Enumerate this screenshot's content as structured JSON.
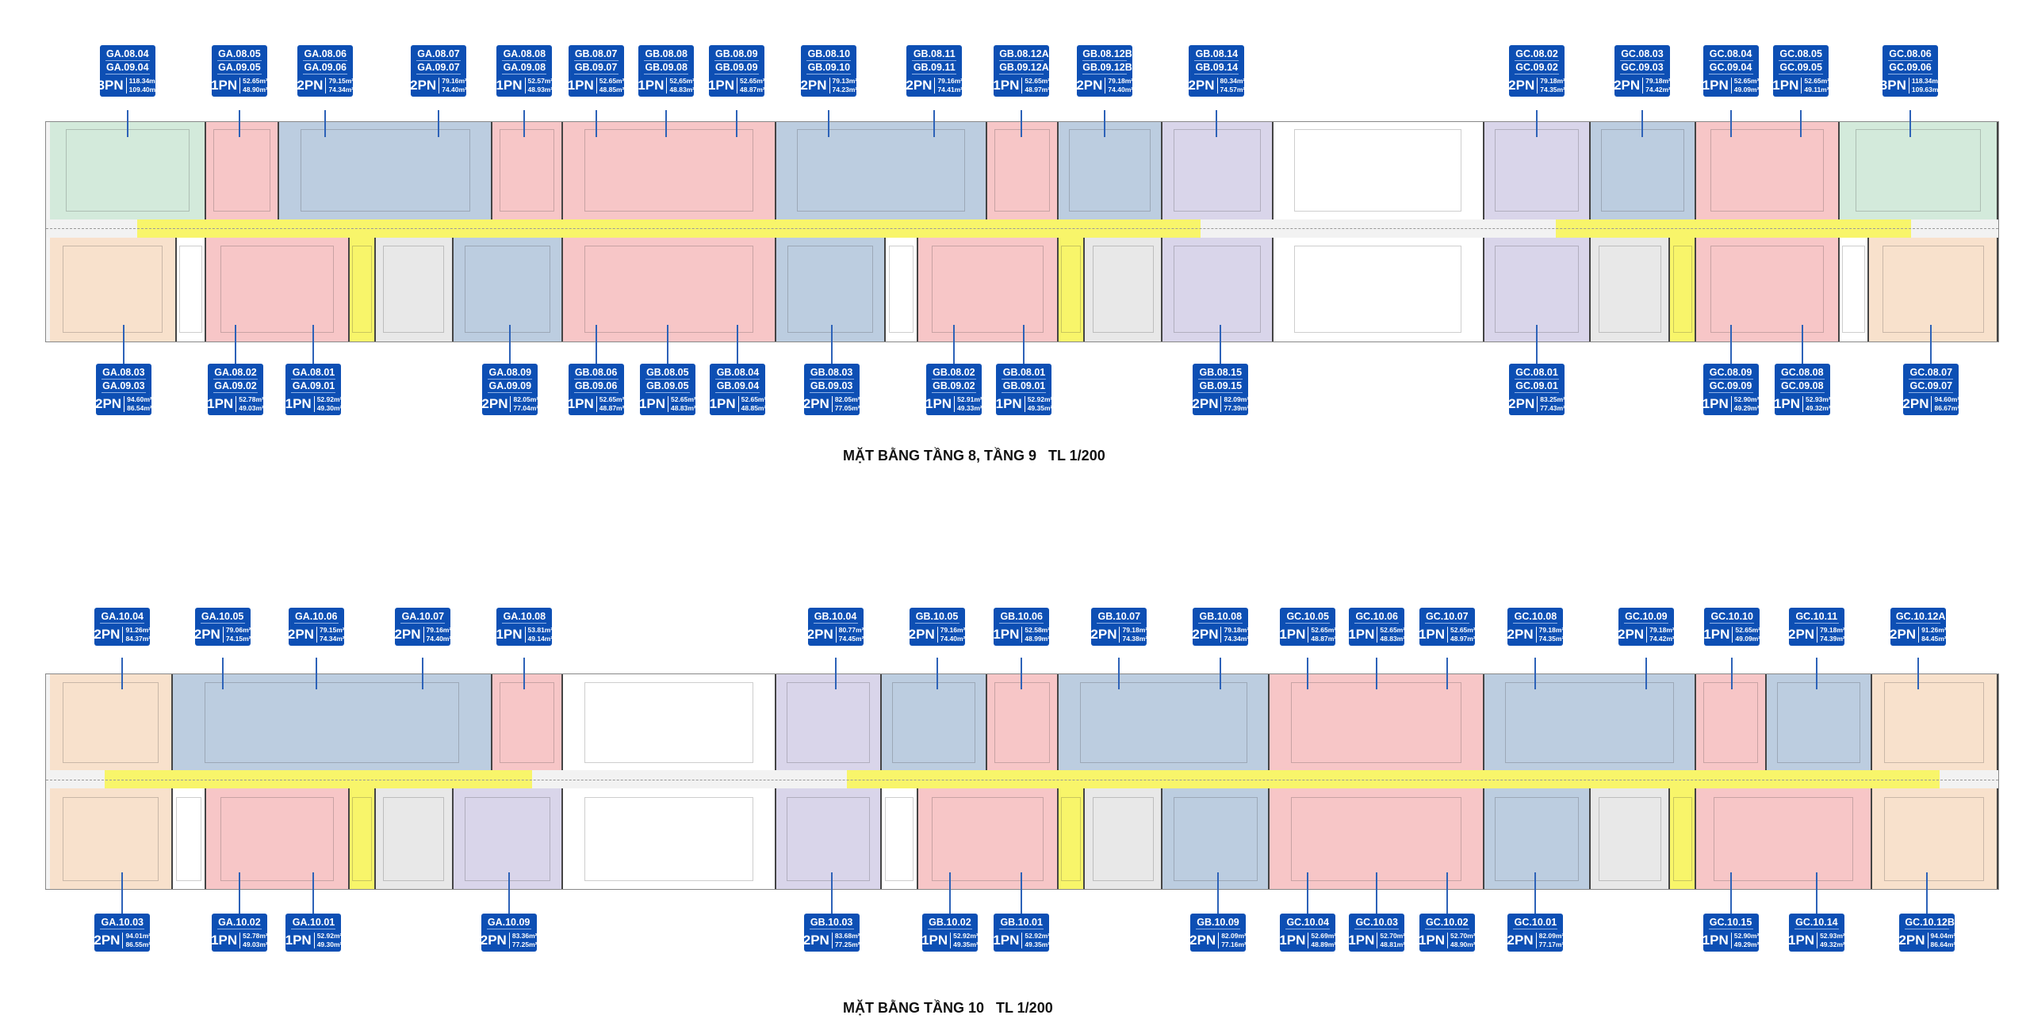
{
  "colors": {
    "label_bg": "#0d4fb4",
    "unit_1pn": "#f7c6c7",
    "unit_2pn": "#bccde0",
    "unit_3pn": "#d3eadb",
    "unit_corner": "#f8e1cc",
    "unit_alt": "#d9d5ea",
    "corridor": "#f8f56a"
  },
  "floors": [
    {
      "title": "MẶT BẰNG TẦNG 8, TẦNG 9   TL 1/200",
      "top_labels": [
        {
          "codes": [
            "GA.08.04",
            "GA.09.04"
          ],
          "type": "3PN",
          "area1": "118.34m²",
          "area2": "109.40m²"
        },
        {
          "codes": [
            "GA.08.05",
            "GA.09.05"
          ],
          "type": "1PN",
          "area1": "52.65m²",
          "area2": "48.90m²"
        },
        {
          "codes": [
            "GA.08.06",
            "GA.09.06"
          ],
          "type": "2PN",
          "area1": "79.15m²",
          "area2": "74.34m²"
        },
        {
          "codes": [
            "GA.08.07",
            "GA.09.07"
          ],
          "type": "2PN",
          "area1": "79.16m²",
          "area2": "74.40m²"
        },
        {
          "codes": [
            "GA.08.08",
            "GA.09.08"
          ],
          "type": "1PN",
          "area1": "52.57m²",
          "area2": "48.93m²"
        },
        {
          "codes": [
            "GB.08.07",
            "GB.09.07"
          ],
          "type": "1PN",
          "area1": "52.65m²",
          "area2": "48.85m²"
        },
        {
          "codes": [
            "GB.08.08",
            "GB.09.08"
          ],
          "type": "1PN",
          "area1": "52,65m²",
          "area2": "48.83m²"
        },
        {
          "codes": [
            "GB.08.09",
            "GB.09.09"
          ],
          "type": "1PN",
          "area1": "52.65m²",
          "area2": "48.87m²"
        },
        {
          "codes": [
            "GB.08.10",
            "GB.09.10"
          ],
          "type": "2PN",
          "area1": "79.13m²",
          "area2": "74.23m²"
        },
        {
          "codes": [
            "GB.08.11",
            "GB.09.11"
          ],
          "type": "2PN",
          "area1": "79.16m²",
          "area2": "74.41m²"
        },
        {
          "codes": [
            "GB.08.12A",
            "GB.09.12A"
          ],
          "type": "1PN",
          "area1": "52.65m²",
          "area2": "48.97m²"
        },
        {
          "codes": [
            "GB.08.12B",
            "GB.09.12B"
          ],
          "type": "2PN",
          "area1": "79.18m²",
          "area2": "74.40m²"
        },
        {
          "codes": [
            "GB.08.14",
            "GB.09.14"
          ],
          "type": "2PN",
          "area1": "80.34m²",
          "area2": "74.57m²"
        },
        {
          "codes": [
            "GC.08.02",
            "GC.09.02"
          ],
          "type": "2PN",
          "area1": "79.18m²",
          "area2": "74.35m²"
        },
        {
          "codes": [
            "GC.08.03",
            "GC.09.03"
          ],
          "type": "2PN",
          "area1": "79.18m²",
          "area2": "74.42m²"
        },
        {
          "codes": [
            "GC.08.04",
            "GC.09.04"
          ],
          "type": "1PN",
          "area1": "52.65m²",
          "area2": "49.09m²"
        },
        {
          "codes": [
            "GC.08.05",
            "GC.09.05"
          ],
          "type": "1PN",
          "area1": "52.65m²",
          "area2": "49.11m²"
        },
        {
          "codes": [
            "GC.08.06",
            "GC.09.06"
          ],
          "type": "3PN",
          "area1": "118.34m²",
          "area2": "109.63m²"
        }
      ],
      "bottom_labels": [
        {
          "codes": [
            "GA.08.03",
            "GA.09.03"
          ],
          "type": "2PN",
          "area1": "94.60m²",
          "area2": "86.54m²"
        },
        {
          "codes": [
            "GA.08.02",
            "GA.09.02"
          ],
          "type": "1PN",
          "area1": "52.78m²",
          "area2": "49.03m²"
        },
        {
          "codes": [
            "GA.08.01",
            "GA.09.01"
          ],
          "type": "1PN",
          "area1": "52.92m²",
          "area2": "49.30m²"
        },
        {
          "codes": [
            "GA.08.09",
            "GA.09.09"
          ],
          "type": "2PN",
          "area1": "82.05m²",
          "area2": "77.04m²"
        },
        {
          "codes": [
            "GB.08.06",
            "GB.09.06"
          ],
          "type": "1PN",
          "area1": "52.65m²",
          "area2": "48.87m²"
        },
        {
          "codes": [
            "GB.08.05",
            "GB.09.05"
          ],
          "type": "1PN",
          "area1": "52.65m²",
          "area2": "48.83m²"
        },
        {
          "codes": [
            "GB.08.04",
            "GB.09.04"
          ],
          "type": "1PN",
          "area1": "52.65m²",
          "area2": "48.85m²"
        },
        {
          "codes": [
            "GB.08.03",
            "GB.09.03"
          ],
          "type": "2PN",
          "area1": "82.05m²",
          "area2": "77.05m²"
        },
        {
          "codes": [
            "GB.08.02",
            "GB.09.02"
          ],
          "type": "1PN",
          "area1": "52.91m²",
          "area2": "49.33m²"
        },
        {
          "codes": [
            "GB.08.01",
            "GB.09.01"
          ],
          "type": "1PN",
          "area1": "52.92m²",
          "area2": "49.35m²"
        },
        {
          "codes": [
            "GB.08.15",
            "GB.09.15"
          ],
          "type": "2PN",
          "area1": "82.09m²",
          "area2": "77.39m²"
        },
        {
          "codes": [
            "GC.08.01",
            "GC.09.01"
          ],
          "type": "2PN",
          "area1": "83.25m²",
          "area2": "77.43m²"
        },
        {
          "codes": [
            "GC.08.09",
            "GC.09.09"
          ],
          "type": "1PN",
          "area1": "52.90m²",
          "area2": "49.29m²"
        },
        {
          "codes": [
            "GC.08.08",
            "GC.09.08"
          ],
          "type": "1PN",
          "area1": "52.93m²",
          "area2": "49.32m²"
        },
        {
          "codes": [
            "GC.08.07",
            "GC.09.07"
          ],
          "type": "2PN",
          "area1": "94.60m²",
          "area2": "86.67m²"
        }
      ]
    },
    {
      "title": "MẶT BẰNG TẦNG 10   TL 1/200",
      "top_labels": [
        {
          "codes": [
            "GA.10.04"
          ],
          "type": "2PN",
          "area1": "91.26m²",
          "area2": "84.37m²"
        },
        {
          "codes": [
            "GA.10.05"
          ],
          "type": "2PN",
          "area1": "79.06m²",
          "area2": "74.15m²"
        },
        {
          "codes": [
            "GA.10.06"
          ],
          "type": "2PN",
          "area1": "79.15m²",
          "area2": "74.34m²"
        },
        {
          "codes": [
            "GA.10.07"
          ],
          "type": "2PN",
          "area1": "79.16m²",
          "area2": "74.40m²"
        },
        {
          "codes": [
            "GA.10.08"
          ],
          "type": "1PN",
          "area1": "53.81m²",
          "area2": "49.14m²"
        },
        {
          "codes": [
            "GB.10.04"
          ],
          "type": "2PN",
          "area1": "80.77m²",
          "area2": "74.45m²"
        },
        {
          "codes": [
            "GB.10.05"
          ],
          "type": "2PN",
          "area1": "79.16m²",
          "area2": "74.40m²"
        },
        {
          "codes": [
            "GB.10.06"
          ],
          "type": "1PN",
          "area1": "52.58m²",
          "area2": "48.99m²"
        },
        {
          "codes": [
            "GB.10.07"
          ],
          "type": "2PN",
          "area1": "79.18m²",
          "area2": "74.38m²"
        },
        {
          "codes": [
            "GB.10.08"
          ],
          "type": "2PN",
          "area1": "79.18m²",
          "area2": "74.34m²"
        },
        {
          "codes": [
            "GC.10.05"
          ],
          "type": "1PN",
          "area1": "52.65m²",
          "area2": "48.87m²"
        },
        {
          "codes": [
            "GC.10.06"
          ],
          "type": "1PN",
          "area1": "52.65m²",
          "area2": "48.83m²"
        },
        {
          "codes": [
            "GC.10.07"
          ],
          "type": "1PN",
          "area1": "52.65m²",
          "area2": "48.97m²"
        },
        {
          "codes": [
            "GC.10.08"
          ],
          "type": "2PN",
          "area1": "79.18m²",
          "area2": "74.35m²"
        },
        {
          "codes": [
            "GC.10.09"
          ],
          "type": "2PN",
          "area1": "79.18m²",
          "area2": "74.42m²"
        },
        {
          "codes": [
            "GC.10.10"
          ],
          "type": "1PN",
          "area1": "52.65m²",
          "area2": "49.09m²"
        },
        {
          "codes": [
            "GC.10.11"
          ],
          "type": "2PN",
          "area1": "79.18m²",
          "area2": "74.39m²"
        },
        {
          "codes": [
            "GC.10.12A"
          ],
          "type": "2PN",
          "area1": "91.26m²",
          "area2": "84.45m²"
        }
      ],
      "bottom_labels": [
        {
          "codes": [
            "GA.10.03"
          ],
          "type": "2PN",
          "area1": "94.01m²",
          "area2": "86.55m²"
        },
        {
          "codes": [
            "GA.10.02"
          ],
          "type": "1PN",
          "area1": "52.78m²",
          "area2": "49.03m²"
        },
        {
          "codes": [
            "GA.10.01"
          ],
          "type": "1PN",
          "area1": "52.92m²",
          "area2": "49.30m²"
        },
        {
          "codes": [
            "GA.10.09"
          ],
          "type": "2PN",
          "area1": "83.36m²",
          "area2": "77.25m²"
        },
        {
          "codes": [
            "GB.10.03"
          ],
          "type": "2PN",
          "area1": "83.68m²",
          "area2": "77.25m²"
        },
        {
          "codes": [
            "GB.10.02"
          ],
          "type": "1PN",
          "area1": "52.92m²",
          "area2": "49.35m²"
        },
        {
          "codes": [
            "GB.10.01"
          ],
          "type": "1PN",
          "area1": "52.92m²",
          "area2": "49.35m²"
        },
        {
          "codes": [
            "GB.10.09"
          ],
          "type": "2PN",
          "area1": "82.09m²",
          "area2": "77.16m²"
        },
        {
          "codes": [
            "GC.10.04"
          ],
          "type": "1PN",
          "area1": "52.69m²",
          "area2": "48.89m²"
        },
        {
          "codes": [
            "GC.10.03"
          ],
          "type": "1PN",
          "area1": "52.70m²",
          "area2": "48.81m²"
        },
        {
          "codes": [
            "GC.10.02"
          ],
          "type": "1PN",
          "area1": "52.70m²",
          "area2": "48.90m²"
        },
        {
          "codes": [
            "GC.10.01"
          ],
          "type": "2PN",
          "area1": "82.09m²",
          "area2": "77.17m²"
        },
        {
          "codes": [
            "GC.10.15"
          ],
          "type": "1PN",
          "area1": "52.90m²",
          "area2": "49.29m²"
        },
        {
          "codes": [
            "GC.10.14"
          ],
          "type": "1PN",
          "area1": "52.93m²",
          "area2": "49.32m²"
        },
        {
          "codes": [
            "GC.10.12B"
          ],
          "type": "2PN",
          "area1": "94.04m²",
          "area2": "86.64m²"
        }
      ]
    }
  ]
}
